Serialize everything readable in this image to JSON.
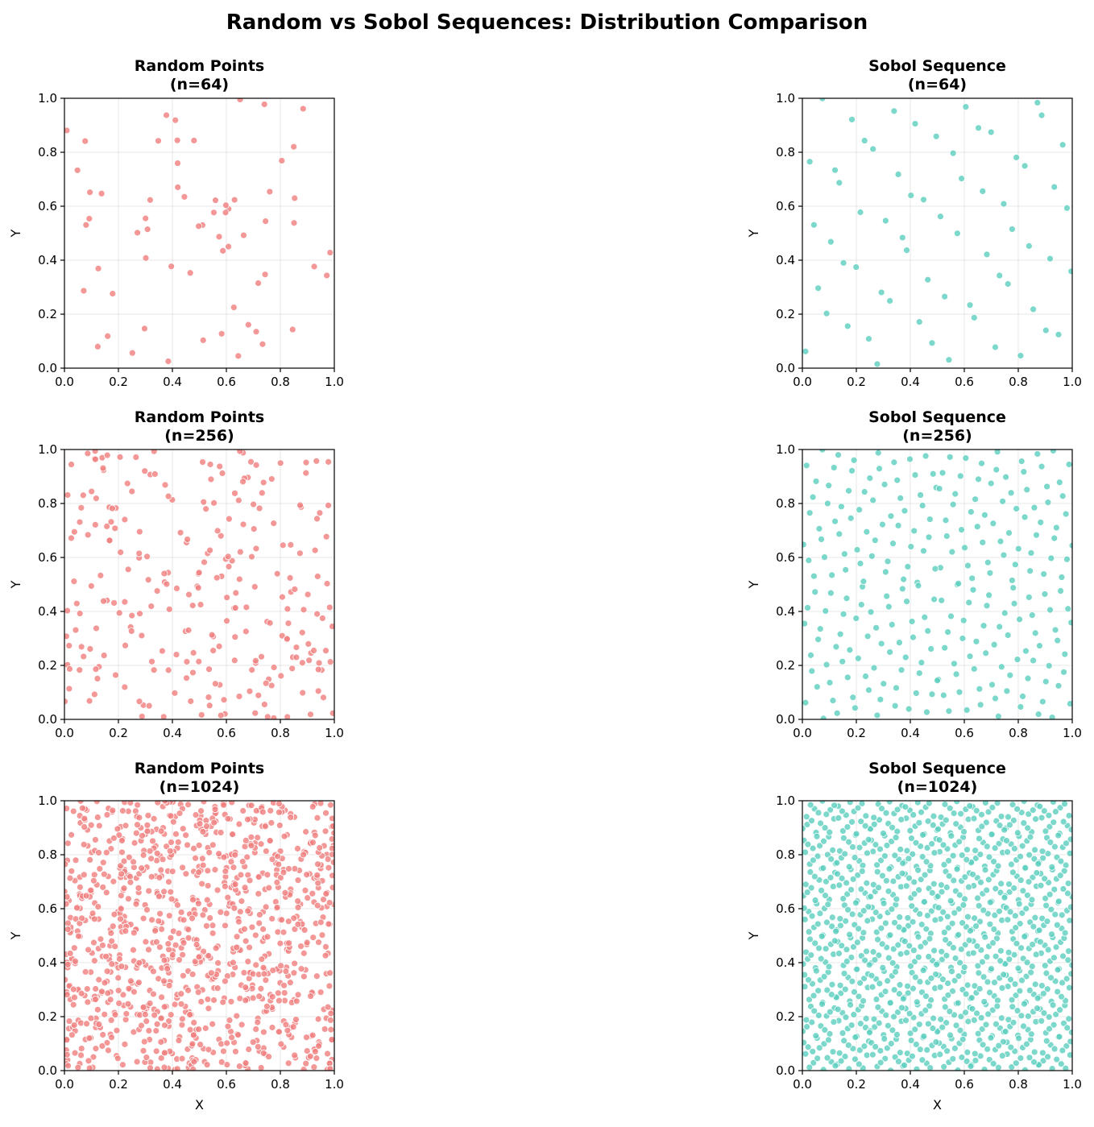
{
  "figure": {
    "title": "Random vs Sobol Sequences: Distribution Comparison"
  },
  "chart_data": [
    {
      "type": "scatter",
      "title_line1": "Random Points",
      "title_line2": "(n=64)",
      "method": "random",
      "n": 64,
      "seed": 11,
      "color": "#f08080",
      "xlabel": "",
      "ylabel": "Y",
      "xlim": [
        0,
        1
      ],
      "ylim": [
        0,
        1
      ],
      "xticks": [
        "0.0",
        "0.2",
        "0.4",
        "0.6",
        "0.8",
        "1.0"
      ],
      "yticks": [
        "0.0",
        "0.2",
        "0.4",
        "0.6",
        "0.8",
        "1.0"
      ],
      "grid": true
    },
    {
      "type": "scatter",
      "title_line1": "Sobol Sequence",
      "title_line2": "(n=64)",
      "method": "sobol",
      "n": 64,
      "color": "#5ecfc0",
      "xlabel": "",
      "ylabel": "Y",
      "xlim": [
        0,
        1
      ],
      "ylim": [
        0,
        1
      ],
      "xticks": [
        "0.0",
        "0.2",
        "0.4",
        "0.6",
        "0.8",
        "1.0"
      ],
      "yticks": [
        "0.0",
        "0.2",
        "0.4",
        "0.6",
        "0.8",
        "1.0"
      ],
      "grid": true
    },
    {
      "type": "scatter",
      "title_line1": "Random Points",
      "title_line2": "(n=256)",
      "method": "random",
      "n": 256,
      "seed": 23,
      "color": "#f08080",
      "xlabel": "",
      "ylabel": "Y",
      "xlim": [
        0,
        1
      ],
      "ylim": [
        0,
        1
      ],
      "xticks": [
        "0.0",
        "0.2",
        "0.4",
        "0.6",
        "0.8",
        "1.0"
      ],
      "yticks": [
        "0.0",
        "0.2",
        "0.4",
        "0.6",
        "0.8",
        "1.0"
      ],
      "grid": true
    },
    {
      "type": "scatter",
      "title_line1": "Sobol Sequence",
      "title_line2": "(n=256)",
      "method": "sobol",
      "n": 256,
      "color": "#5ecfc0",
      "xlabel": "",
      "ylabel": "Y",
      "xlim": [
        0,
        1
      ],
      "ylim": [
        0,
        1
      ],
      "xticks": [
        "0.0",
        "0.2",
        "0.4",
        "0.6",
        "0.8",
        "1.0"
      ],
      "yticks": [
        "0.0",
        "0.2",
        "0.4",
        "0.6",
        "0.8",
        "1.0"
      ],
      "grid": true
    },
    {
      "type": "scatter",
      "title_line1": "Random Points",
      "title_line2": "(n=1024)",
      "method": "random",
      "n": 1024,
      "seed": 37,
      "color": "#f08080",
      "xlabel": "X",
      "ylabel": "Y",
      "xlim": [
        0,
        1
      ],
      "ylim": [
        0,
        1
      ],
      "xticks": [
        "0.0",
        "0.2",
        "0.4",
        "0.6",
        "0.8",
        "1.0"
      ],
      "yticks": [
        "0.0",
        "0.2",
        "0.4",
        "0.6",
        "0.8",
        "1.0"
      ],
      "grid": true
    },
    {
      "type": "scatter",
      "title_line1": "Sobol Sequence",
      "title_line2": "(n=1024)",
      "method": "sobol",
      "n": 1024,
      "color": "#5ecfc0",
      "xlabel": "X",
      "ylabel": "Y",
      "xlim": [
        0,
        1
      ],
      "ylim": [
        0,
        1
      ],
      "xticks": [
        "0.0",
        "0.2",
        "0.4",
        "0.6",
        "0.8",
        "1.0"
      ],
      "yticks": [
        "0.0",
        "0.2",
        "0.4",
        "0.6",
        "0.8",
        "1.0"
      ],
      "grid": true
    }
  ]
}
